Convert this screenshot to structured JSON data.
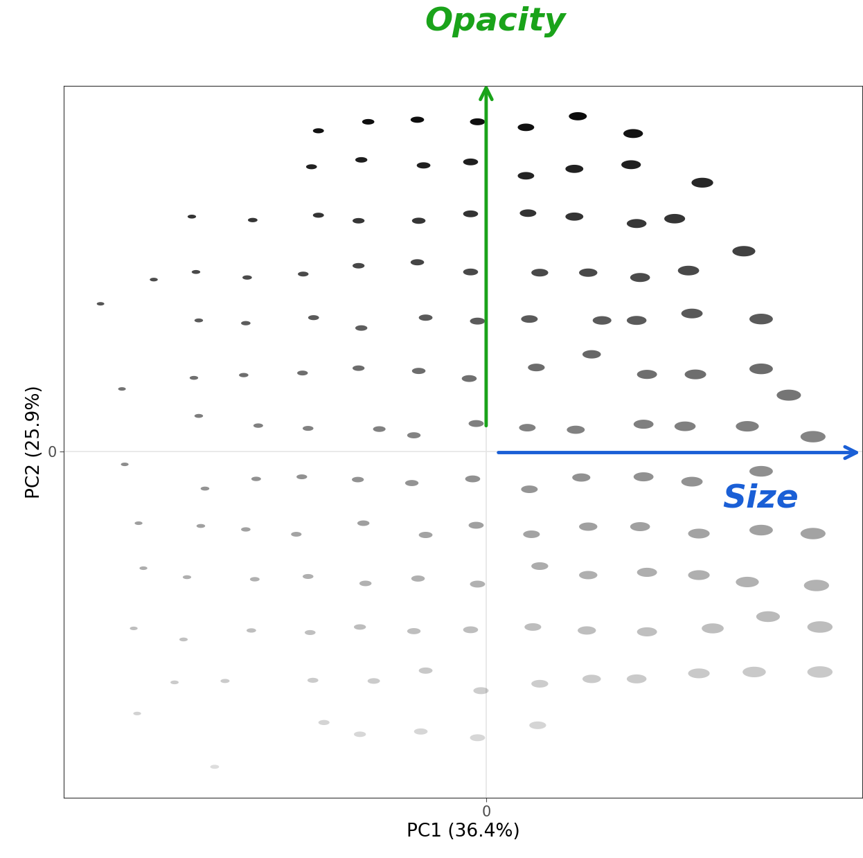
{
  "chart_data": {
    "type": "scatter",
    "x_label": "PC1 (36.4%)",
    "y_label": "PC2 (25.9%)",
    "x": [
      -0.243,
      -0.171,
      -0.1,
      -0.013,
      0.057,
      0.132,
      0.212,
      -0.253,
      -0.181,
      -0.091,
      -0.023,
      0.057,
      0.127,
      0.209,
      0.312,
      -0.426,
      -0.338,
      -0.243,
      -0.185,
      -0.098,
      -0.023,
      0.06,
      0.127,
      0.217,
      0.272,
      0.372,
      -0.481,
      -0.42,
      -0.346,
      -0.265,
      -0.185,
      -0.1,
      -0.023,
      0.077,
      0.147,
      0.222,
      0.292,
      -0.558,
      -0.416,
      -0.348,
      -0.25,
      -0.181,
      -0.088,
      -0.013,
      0.062,
      0.167,
      0.217,
      0.297,
      0.397,
      0.152,
      -0.527,
      -0.423,
      -0.351,
      -0.266,
      -0.185,
      -0.098,
      -0.025,
      0.072,
      0.232,
      0.302,
      0.397,
      0.437,
      -0.416,
      -0.33,
      -0.258,
      -0.155,
      -0.105,
      -0.015,
      0.059,
      0.129,
      0.227,
      0.287,
      0.377,
      0.472,
      -0.523,
      -0.407,
      -0.333,
      -0.267,
      -0.186,
      -0.108,
      -0.02,
      0.062,
      0.137,
      0.227,
      0.297,
      0.397,
      -0.503,
      -0.413,
      -0.348,
      -0.275,
      -0.178,
      -0.088,
      -0.015,
      0.065,
      0.147,
      0.222,
      0.307,
      0.397,
      0.472,
      -0.496,
      -0.433,
      -0.335,
      -0.258,
      -0.175,
      -0.099,
      -0.013,
      0.077,
      0.147,
      0.232,
      0.307,
      0.377,
      0.477,
      -0.51,
      -0.438,
      -0.34,
      -0.255,
      -0.183,
      -0.105,
      -0.023,
      0.067,
      0.145,
      0.232,
      0.327,
      0.407,
      0.482,
      -0.451,
      -0.378,
      -0.251,
      -0.163,
      -0.088,
      -0.008,
      0.077,
      0.152,
      0.217,
      0.307,
      0.387,
      0.482,
      -0.505,
      -0.235,
      -0.183,
      -0.095,
      -0.013,
      0.074,
      -0.393
    ],
    "values": [
      0.463,
      0.476,
      0.479,
      0.476,
      0.468,
      0.484,
      0.459,
      0.411,
      0.421,
      0.413,
      0.418,
      0.398,
      0.408,
      0.414,
      0.388,
      0.339,
      0.334,
      0.341,
      0.333,
      0.333,
      0.343,
      0.344,
      0.339,
      0.329,
      0.336,
      0.289,
      0.248,
      0.259,
      0.251,
      0.256,
      0.268,
      0.273,
      0.259,
      0.258,
      0.258,
      0.251,
      0.261,
      0.213,
      0.189,
      0.185,
      0.193,
      0.178,
      0.193,
      0.188,
      0.191,
      0.189,
      0.189,
      0.199,
      0.191,
      0.14,
      0.09,
      0.106,
      0.11,
      0.113,
      0.12,
      0.116,
      0.105,
      0.121,
      0.111,
      0.111,
      0.119,
      0.081,
      0.051,
      0.037,
      0.033,
      0.032,
      0.023,
      0.04,
      0.034,
      0.031,
      0.039,
      0.036,
      0.036,
      0.021,
      -0.019,
      -0.054,
      -0.04,
      -0.037,
      -0.041,
      -0.046,
      -0.04,
      -0.055,
      -0.038,
      -0.037,
      -0.044,
      -0.029,
      -0.104,
      -0.108,
      -0.113,
      -0.12,
      -0.104,
      -0.121,
      -0.107,
      -0.12,
      -0.109,
      -0.109,
      -0.119,
      -0.114,
      -0.119,
      -0.169,
      -0.182,
      -0.185,
      -0.181,
      -0.191,
      -0.184,
      -0.192,
      -0.166,
      -0.179,
      -0.175,
      -0.179,
      -0.189,
      -0.194,
      -0.256,
      -0.272,
      -0.259,
      -0.262,
      -0.254,
      -0.26,
      -0.258,
      -0.254,
      -0.259,
      -0.261,
      -0.256,
      -0.239,
      -0.254,
      -0.334,
      -0.332,
      -0.331,
      -0.332,
      -0.317,
      -0.346,
      -0.336,
      -0.329,
      -0.329,
      -0.321,
      -0.319,
      -0.319,
      -0.379,
      -0.392,
      -0.409,
      -0.405,
      -0.414,
      -0.396,
      -0.456
    ],
    "color": "#000000",
    "marker": "ellipse",
    "xlim": [
      -0.611,
      0.543
    ],
    "ylim": [
      -0.501,
      0.528
    ],
    "xticks": [
      0
    ],
    "yticks": [
      0
    ],
    "grid": true,
    "annotations": [
      {
        "text": "Opacity",
        "color": "#1aa31a"
      },
      {
        "text": "Size",
        "color": "#1a5fd6"
      }
    ]
  }
}
